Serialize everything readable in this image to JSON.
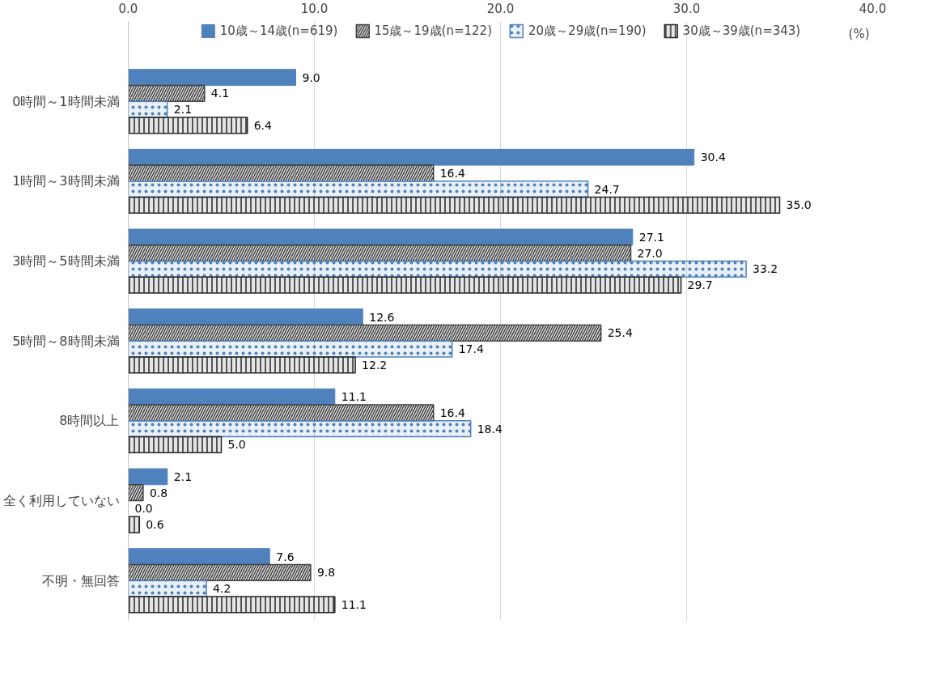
{
  "chart_data": {
    "type": "bar",
    "orientation": "horizontal",
    "xlabel": "(%)",
    "categories": [
      "0時間～1時間未満",
      "1時間～3時間未満",
      "3時間～5時間未満",
      "5時間～8時間未満",
      "8時間以上",
      "全く利用していない",
      "不明・無回答"
    ],
    "series": [
      {
        "name": "10歳～14歳(n=619)",
        "color": "#4f81bd",
        "values": [
          9.0,
          30.4,
          27.1,
          12.6,
          11.1,
          2.1,
          7.6
        ],
        "value_labels": [
          "9.0",
          "30.4",
          "27.1",
          "12.6",
          "11.1",
          "2.1",
          "7.6"
        ]
      },
      {
        "name": "15歳～19歳(n=122)",
        "color": "#404040",
        "values": [
          4.1,
          16.4,
          27.0,
          25.4,
          16.4,
          0.8,
          9.8
        ],
        "value_labels": [
          "4.1",
          "16.4",
          "27.0",
          "25.4",
          "16.4",
          "0.8",
          "9.8"
        ]
      },
      {
        "name": "20歳～29歳(n=190)",
        "color": "#4f81bd",
        "values": [
          2.1,
          24.7,
          33.2,
          17.4,
          18.4,
          0.0,
          4.2
        ],
        "value_labels": [
          "2.1",
          "24.7",
          "33.2",
          "17.4",
          "18.4",
          "0.0",
          "4.2"
        ]
      },
      {
        "name": "30歳～39歳(n=343)",
        "color": "#262626",
        "values": [
          6.4,
          35.0,
          29.7,
          12.2,
          5.0,
          0.6,
          11.1
        ],
        "value_labels": [
          "6.4",
          "35.0",
          "29.7",
          "12.2",
          "5.0",
          "0.6",
          "11.1"
        ]
      }
    ],
    "xlim": [
      0,
      40
    ],
    "xticks": [
      {
        "value": 0,
        "label": "0.0"
      },
      {
        "value": 10,
        "label": "10.0"
      },
      {
        "value": 20,
        "label": "20.0"
      },
      {
        "value": 30,
        "label": "30.0"
      },
      {
        "value": 40,
        "label": "40.0"
      }
    ],
    "grid": "x",
    "legend": "top"
  }
}
